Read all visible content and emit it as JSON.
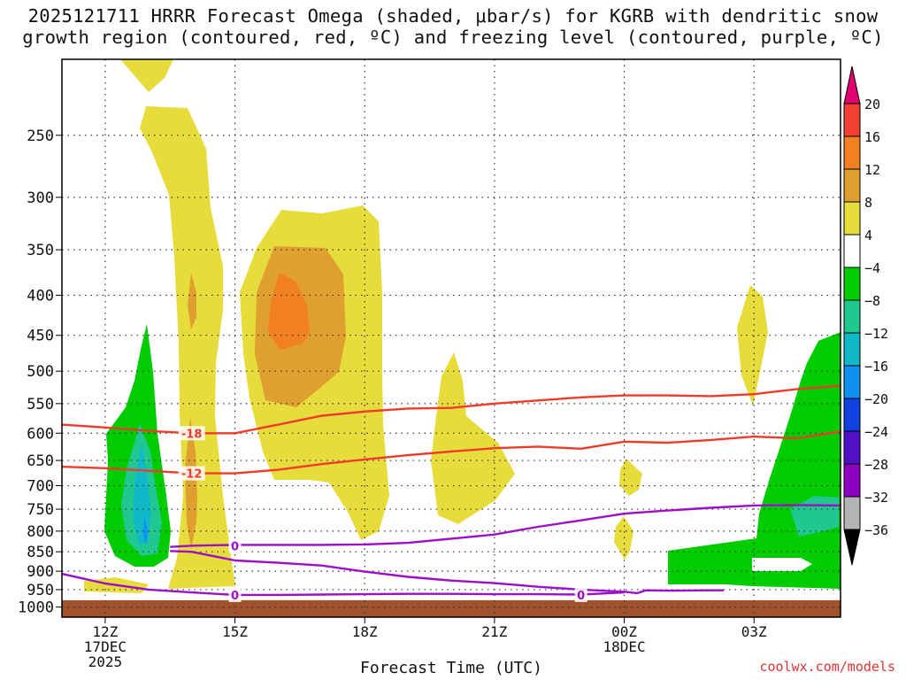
{
  "title": {
    "line1": "2025121711 HRRR Forecast Omega (shaded, μbar/s) for KGRB with dendritic snow",
    "line2": "growth region (contoured, red, ºC) and freezing level (contoured, purple, ºC)"
  },
  "credit": "coolwx.com/models",
  "chart_data": {
    "type": "heatmap",
    "x_axis": {
      "label": "Forecast Time (UTC)",
      "ticks": [
        {
          "hour": 12,
          "label": "12Z",
          "sub1": "17DEC",
          "sub2": "2025"
        },
        {
          "hour": 15,
          "label": "15Z",
          "sub1": "",
          "sub2": ""
        },
        {
          "hour": 18,
          "label": "18Z",
          "sub1": "",
          "sub2": ""
        },
        {
          "hour": 21,
          "label": "21Z",
          "sub1": "",
          "sub2": ""
        },
        {
          "hour": 24,
          "label": "00Z",
          "sub1": "18DEC",
          "sub2": ""
        },
        {
          "hour": 27,
          "label": "03Z",
          "sub1": "",
          "sub2": ""
        }
      ],
      "range_hours": [
        11,
        29
      ]
    },
    "y_axis": {
      "label": "",
      "unit": "hPa",
      "ticks": [
        250,
        300,
        350,
        400,
        450,
        500,
        550,
        600,
        650,
        700,
        750,
        800,
        850,
        900,
        950,
        1000
      ],
      "range": [
        200,
        1030
      ]
    },
    "ground_level_hpa": 980,
    "colorbar": {
      "labels": [
        "20",
        "16",
        "12",
        "8",
        "4",
        "−4",
        "−8",
        "−12",
        "−16",
        "−20",
        "−24",
        "−28",
        "−32",
        "−36"
      ],
      "colors": [
        "#e00070",
        "#f04030",
        "#f08020",
        "#e0a030",
        "#e6dc3c",
        "#ffffff",
        "#00cc00",
        "#20c890",
        "#10b8c8",
        "#1090f0",
        "#1040e0",
        "#5010c8",
        "#8c00c0",
        "#b4b4b4",
        "#000000"
      ]
    },
    "contours": [
      {
        "color": "#ef3b2c",
        "value_label": "-18",
        "label_at": [
          14.0,
          600
        ],
        "points": [
          [
            11.0,
            585
          ],
          [
            12.0,
            590
          ],
          [
            13.0,
            596
          ],
          [
            14.0,
            600
          ],
          [
            15.0,
            600
          ],
          [
            16.0,
            585
          ],
          [
            17.0,
            570
          ],
          [
            18.0,
            563
          ],
          [
            19.0,
            558
          ],
          [
            20.0,
            557
          ],
          [
            21.0,
            550
          ],
          [
            22.0,
            545
          ],
          [
            23.0,
            540
          ],
          [
            24.0,
            537
          ],
          [
            25.0,
            537
          ],
          [
            26.0,
            538
          ],
          [
            27.0,
            535
          ],
          [
            28.0,
            527
          ],
          [
            29.0,
            522
          ]
        ]
      },
      {
        "color": "#ef3b2c",
        "value_label": "-12",
        "label_at": [
          14.0,
          675
        ],
        "points": [
          [
            11.0,
            662
          ],
          [
            12.0,
            665
          ],
          [
            13.0,
            670
          ],
          [
            14.0,
            675
          ],
          [
            15.0,
            675
          ],
          [
            16.0,
            668
          ],
          [
            17.0,
            657
          ],
          [
            18.0,
            648
          ],
          [
            19.0,
            640
          ],
          [
            20.0,
            633
          ],
          [
            21.0,
            627
          ],
          [
            22.0,
            624
          ],
          [
            23.0,
            628
          ],
          [
            24.0,
            615
          ],
          [
            25.0,
            617
          ],
          [
            26.0,
            612
          ],
          [
            27.0,
            606
          ],
          [
            28.0,
            609
          ],
          [
            29.0,
            597
          ]
        ]
      },
      {
        "color": "#9b10c8",
        "value_label": "0",
        "label_at": [
          15.0,
          835
        ],
        "points": [
          [
            13.5,
            838
          ],
          [
            14.0,
            835
          ],
          [
            15.0,
            833
          ],
          [
            16.0,
            833
          ],
          [
            17.0,
            833
          ],
          [
            18.0,
            832
          ],
          [
            19.0,
            828
          ],
          [
            20.0,
            818
          ],
          [
            21.0,
            808
          ],
          [
            22.0,
            790
          ],
          [
            23.0,
            775
          ],
          [
            24.0,
            760
          ],
          [
            25.0,
            753
          ],
          [
            26.0,
            747
          ],
          [
            27.0,
            742
          ],
          [
            28.0,
            741
          ],
          [
            29.0,
            742
          ]
        ]
      },
      {
        "color": "#9b10c8",
        "value_label": "0",
        "label_at": [
          15.0,
          965
        ],
        "points": [
          [
            11.0,
            907
          ],
          [
            11.5,
            920
          ],
          [
            12.0,
            933
          ],
          [
            13.0,
            950
          ],
          [
            14.0,
            958
          ],
          [
            15.0,
            965
          ],
          [
            16.0,
            965
          ],
          [
            17.0,
            964
          ],
          [
            18.0,
            963
          ],
          [
            19.0,
            962
          ],
          [
            20.0,
            962
          ],
          [
            21.0,
            963
          ],
          [
            22.0,
            963
          ],
          [
            23.0,
            964
          ],
          [
            24.0,
            958
          ]
        ]
      },
      {
        "color": "#9b10c8",
        "value_label": "0",
        "label_at": [
          23.0,
          965
        ],
        "points": [
          [
            13.5,
            848
          ],
          [
            14.0,
            850
          ],
          [
            15.0,
            872
          ],
          [
            16.0,
            878
          ],
          [
            17.0,
            885
          ],
          [
            18.0,
            901
          ],
          [
            19.0,
            915
          ],
          [
            20.0,
            925
          ],
          [
            21.0,
            932
          ],
          [
            22.0,
            942
          ],
          [
            23.0,
            950
          ],
          [
            24.0,
            956
          ],
          [
            24.3,
            960
          ],
          [
            24.5,
            952
          ],
          [
            25.0,
            953
          ],
          [
            26.0,
            952
          ],
          [
            26.3,
            952
          ]
        ]
      }
    ]
  }
}
